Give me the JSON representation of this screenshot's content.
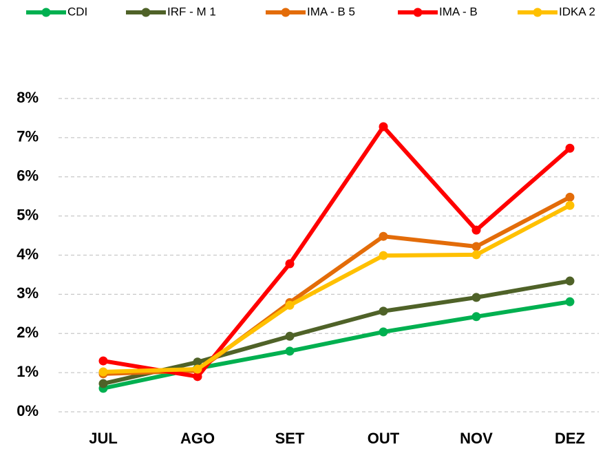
{
  "chart_data": {
    "type": "line",
    "categories": [
      "JUL",
      "AGO",
      "SET",
      "OUT",
      "NOV",
      "DEZ"
    ],
    "series": [
      {
        "name": "CDI",
        "color": "#00b050",
        "values": [
          0.6,
          1.11,
          1.55,
          2.04,
          2.43,
          2.81
        ]
      },
      {
        "name": "IRF - M 1",
        "color": "#4f6228",
        "values": [
          0.72,
          1.27,
          1.93,
          2.57,
          2.92,
          3.34
        ]
      },
      {
        "name": "IMA - B 5",
        "color": "#e36c09",
        "values": [
          0.97,
          1.05,
          2.79,
          4.48,
          4.22,
          5.48
        ]
      },
      {
        "name": "IMA - B",
        "color": "#ff0000",
        "values": [
          1.3,
          0.9,
          3.78,
          7.28,
          4.64,
          6.73
        ]
      },
      {
        "name": "IDKA 2",
        "color": "#ffc000",
        "values": [
          1.02,
          1.09,
          2.72,
          3.99,
          4.01,
          5.27
        ]
      }
    ],
    "ylim": [
      0,
      8
    ],
    "yticks": [
      {
        "value": 0,
        "label": "0%"
      },
      {
        "value": 1,
        "label": "1%"
      },
      {
        "value": 2,
        "label": "2%"
      },
      {
        "value": 3,
        "label": "3%"
      },
      {
        "value": 4,
        "label": "4%"
      },
      {
        "value": 5,
        "label": "5%"
      },
      {
        "value": 6,
        "label": "6%"
      },
      {
        "value": 7,
        "label": "7%"
      },
      {
        "value": 8,
        "label": "8%"
      }
    ],
    "grid": true
  }
}
